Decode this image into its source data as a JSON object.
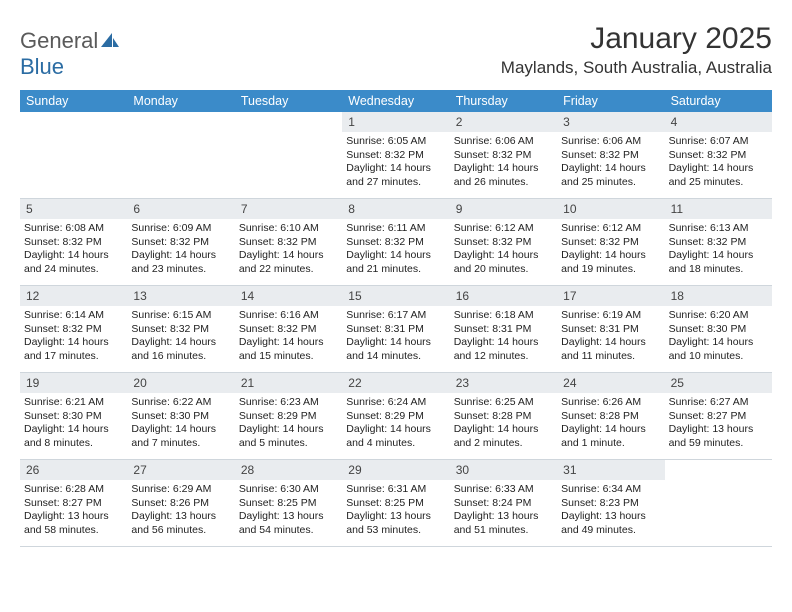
{
  "logo": {
    "word1": "General",
    "word2": "Blue"
  },
  "title": "January 2025",
  "location": "Maylands, South Australia, Australia",
  "colors": {
    "header_bg": "#3b8bc9",
    "header_text": "#ffffff",
    "daynum_bg": "#e9ecef",
    "border": "#cfd6dc",
    "logo_gray": "#5a5a5a",
    "logo_blue": "#2b6ca3"
  },
  "daysOfWeek": [
    "Sunday",
    "Monday",
    "Tuesday",
    "Wednesday",
    "Thursday",
    "Friday",
    "Saturday"
  ],
  "weeks": [
    [
      {
        "day": "",
        "sunrise": "",
        "sunset": "",
        "daylight": ""
      },
      {
        "day": "",
        "sunrise": "",
        "sunset": "",
        "daylight": ""
      },
      {
        "day": "",
        "sunrise": "",
        "sunset": "",
        "daylight": ""
      },
      {
        "day": "1",
        "sunrise": "Sunrise: 6:05 AM",
        "sunset": "Sunset: 8:32 PM",
        "daylight": "Daylight: 14 hours and 27 minutes."
      },
      {
        "day": "2",
        "sunrise": "Sunrise: 6:06 AM",
        "sunset": "Sunset: 8:32 PM",
        "daylight": "Daylight: 14 hours and 26 minutes."
      },
      {
        "day": "3",
        "sunrise": "Sunrise: 6:06 AM",
        "sunset": "Sunset: 8:32 PM",
        "daylight": "Daylight: 14 hours and 25 minutes."
      },
      {
        "day": "4",
        "sunrise": "Sunrise: 6:07 AM",
        "sunset": "Sunset: 8:32 PM",
        "daylight": "Daylight: 14 hours and 25 minutes."
      }
    ],
    [
      {
        "day": "5",
        "sunrise": "Sunrise: 6:08 AM",
        "sunset": "Sunset: 8:32 PM",
        "daylight": "Daylight: 14 hours and 24 minutes."
      },
      {
        "day": "6",
        "sunrise": "Sunrise: 6:09 AM",
        "sunset": "Sunset: 8:32 PM",
        "daylight": "Daylight: 14 hours and 23 minutes."
      },
      {
        "day": "7",
        "sunrise": "Sunrise: 6:10 AM",
        "sunset": "Sunset: 8:32 PM",
        "daylight": "Daylight: 14 hours and 22 minutes."
      },
      {
        "day": "8",
        "sunrise": "Sunrise: 6:11 AM",
        "sunset": "Sunset: 8:32 PM",
        "daylight": "Daylight: 14 hours and 21 minutes."
      },
      {
        "day": "9",
        "sunrise": "Sunrise: 6:12 AM",
        "sunset": "Sunset: 8:32 PM",
        "daylight": "Daylight: 14 hours and 20 minutes."
      },
      {
        "day": "10",
        "sunrise": "Sunrise: 6:12 AM",
        "sunset": "Sunset: 8:32 PM",
        "daylight": "Daylight: 14 hours and 19 minutes."
      },
      {
        "day": "11",
        "sunrise": "Sunrise: 6:13 AM",
        "sunset": "Sunset: 8:32 PM",
        "daylight": "Daylight: 14 hours and 18 minutes."
      }
    ],
    [
      {
        "day": "12",
        "sunrise": "Sunrise: 6:14 AM",
        "sunset": "Sunset: 8:32 PM",
        "daylight": "Daylight: 14 hours and 17 minutes."
      },
      {
        "day": "13",
        "sunrise": "Sunrise: 6:15 AM",
        "sunset": "Sunset: 8:32 PM",
        "daylight": "Daylight: 14 hours and 16 minutes."
      },
      {
        "day": "14",
        "sunrise": "Sunrise: 6:16 AM",
        "sunset": "Sunset: 8:32 PM",
        "daylight": "Daylight: 14 hours and 15 minutes."
      },
      {
        "day": "15",
        "sunrise": "Sunrise: 6:17 AM",
        "sunset": "Sunset: 8:31 PM",
        "daylight": "Daylight: 14 hours and 14 minutes."
      },
      {
        "day": "16",
        "sunrise": "Sunrise: 6:18 AM",
        "sunset": "Sunset: 8:31 PM",
        "daylight": "Daylight: 14 hours and 12 minutes."
      },
      {
        "day": "17",
        "sunrise": "Sunrise: 6:19 AM",
        "sunset": "Sunset: 8:31 PM",
        "daylight": "Daylight: 14 hours and 11 minutes."
      },
      {
        "day": "18",
        "sunrise": "Sunrise: 6:20 AM",
        "sunset": "Sunset: 8:30 PM",
        "daylight": "Daylight: 14 hours and 10 minutes."
      }
    ],
    [
      {
        "day": "19",
        "sunrise": "Sunrise: 6:21 AM",
        "sunset": "Sunset: 8:30 PM",
        "daylight": "Daylight: 14 hours and 8 minutes."
      },
      {
        "day": "20",
        "sunrise": "Sunrise: 6:22 AM",
        "sunset": "Sunset: 8:30 PM",
        "daylight": "Daylight: 14 hours and 7 minutes."
      },
      {
        "day": "21",
        "sunrise": "Sunrise: 6:23 AM",
        "sunset": "Sunset: 8:29 PM",
        "daylight": "Daylight: 14 hours and 5 minutes."
      },
      {
        "day": "22",
        "sunrise": "Sunrise: 6:24 AM",
        "sunset": "Sunset: 8:29 PM",
        "daylight": "Daylight: 14 hours and 4 minutes."
      },
      {
        "day": "23",
        "sunrise": "Sunrise: 6:25 AM",
        "sunset": "Sunset: 8:28 PM",
        "daylight": "Daylight: 14 hours and 2 minutes."
      },
      {
        "day": "24",
        "sunrise": "Sunrise: 6:26 AM",
        "sunset": "Sunset: 8:28 PM",
        "daylight": "Daylight: 14 hours and 1 minute."
      },
      {
        "day": "25",
        "sunrise": "Sunrise: 6:27 AM",
        "sunset": "Sunset: 8:27 PM",
        "daylight": "Daylight: 13 hours and 59 minutes."
      }
    ],
    [
      {
        "day": "26",
        "sunrise": "Sunrise: 6:28 AM",
        "sunset": "Sunset: 8:27 PM",
        "daylight": "Daylight: 13 hours and 58 minutes."
      },
      {
        "day": "27",
        "sunrise": "Sunrise: 6:29 AM",
        "sunset": "Sunset: 8:26 PM",
        "daylight": "Daylight: 13 hours and 56 minutes."
      },
      {
        "day": "28",
        "sunrise": "Sunrise: 6:30 AM",
        "sunset": "Sunset: 8:25 PM",
        "daylight": "Daylight: 13 hours and 54 minutes."
      },
      {
        "day": "29",
        "sunrise": "Sunrise: 6:31 AM",
        "sunset": "Sunset: 8:25 PM",
        "daylight": "Daylight: 13 hours and 53 minutes."
      },
      {
        "day": "30",
        "sunrise": "Sunrise: 6:33 AM",
        "sunset": "Sunset: 8:24 PM",
        "daylight": "Daylight: 13 hours and 51 minutes."
      },
      {
        "day": "31",
        "sunrise": "Sunrise: 6:34 AM",
        "sunset": "Sunset: 8:23 PM",
        "daylight": "Daylight: 13 hours and 49 minutes."
      },
      {
        "day": "",
        "sunrise": "",
        "sunset": "",
        "daylight": ""
      }
    ]
  ]
}
